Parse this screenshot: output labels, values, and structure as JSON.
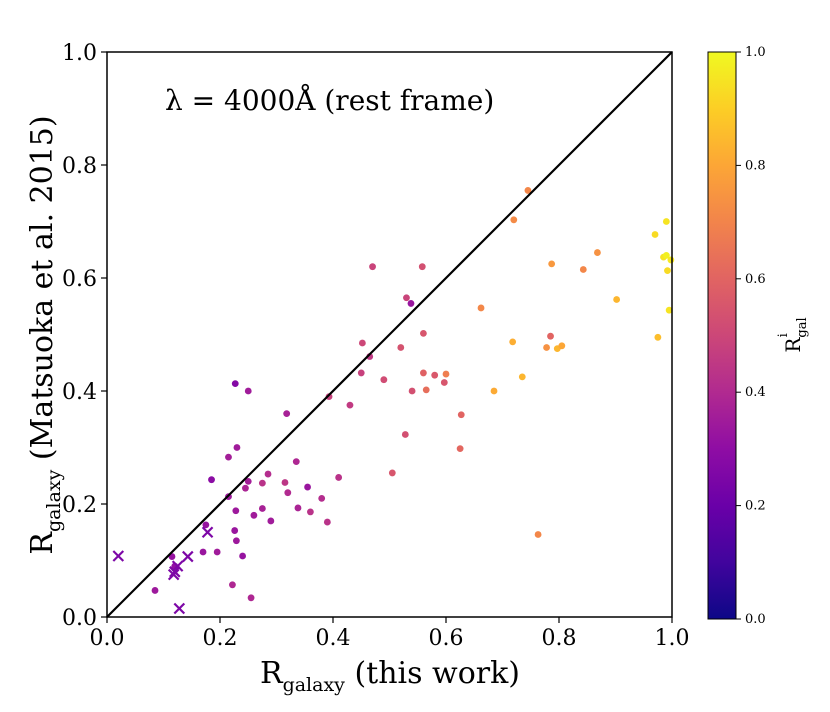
{
  "chart_data": {
    "type": "scatter",
    "annotation": "λ = 4000Å (rest frame)",
    "xlabel": {
      "main": "R",
      "sub": "galaxy",
      "rest": " (this work)"
    },
    "ylabel": {
      "main": "R",
      "sub": "galaxy",
      "rest": " (Matsuoka et al. 2015)"
    },
    "xlim": [
      0.0,
      1.0
    ],
    "ylim": [
      0.0,
      1.0
    ],
    "xticks": [
      "0.0",
      "0.2",
      "0.4",
      "0.6",
      "0.8",
      "1.0"
    ],
    "yticks": [
      "0.0",
      "0.2",
      "0.4",
      "0.6",
      "0.8",
      "1.0"
    ],
    "identity_line": true,
    "colorbar": {
      "label": {
        "main": "R",
        "sup": "i",
        "sub": "gal"
      },
      "range": [
        0.0,
        1.0
      ],
      "ticks": [
        "0.0",
        "0.2",
        "0.4",
        "0.6",
        "0.8",
        "1.0"
      ],
      "colormap": "plasma"
    },
    "series": [
      {
        "name": "circles",
        "marker": "o",
        "points": [
          [
            0.085,
            0.047,
            0.34
          ],
          [
            0.115,
            0.107,
            0.32
          ],
          [
            0.12,
            0.09,
            0.31
          ],
          [
            0.17,
            0.115,
            0.33
          ],
          [
            0.175,
            0.163,
            0.32
          ],
          [
            0.185,
            0.243,
            0.29
          ],
          [
            0.195,
            0.115,
            0.35
          ],
          [
            0.215,
            0.283,
            0.36
          ],
          [
            0.215,
            0.213,
            0.34
          ],
          [
            0.222,
            0.057,
            0.39
          ],
          [
            0.226,
            0.153,
            0.33
          ],
          [
            0.227,
            0.413,
            0.27
          ],
          [
            0.228,
            0.188,
            0.34
          ],
          [
            0.229,
            0.135,
            0.34
          ],
          [
            0.23,
            0.3,
            0.35
          ],
          [
            0.24,
            0.108,
            0.32
          ],
          [
            0.245,
            0.228,
            0.38
          ],
          [
            0.25,
            0.4,
            0.35
          ],
          [
            0.25,
            0.24,
            0.36
          ],
          [
            0.255,
            0.034,
            0.39
          ],
          [
            0.26,
            0.18,
            0.35
          ],
          [
            0.275,
            0.237,
            0.43
          ],
          [
            0.275,
            0.192,
            0.37
          ],
          [
            0.285,
            0.253,
            0.41
          ],
          [
            0.29,
            0.17,
            0.35
          ],
          [
            0.315,
            0.238,
            0.44
          ],
          [
            0.318,
            0.36,
            0.37
          ],
          [
            0.32,
            0.22,
            0.4
          ],
          [
            0.335,
            0.275,
            0.39
          ],
          [
            0.338,
            0.193,
            0.38
          ],
          [
            0.355,
            0.23,
            0.33
          ],
          [
            0.36,
            0.186,
            0.43
          ],
          [
            0.38,
            0.21,
            0.41
          ],
          [
            0.39,
            0.168,
            0.43
          ],
          [
            0.393,
            0.39,
            0.48
          ],
          [
            0.41,
            0.247,
            0.43
          ],
          [
            0.43,
            0.375,
            0.46
          ],
          [
            0.45,
            0.432,
            0.48
          ],
          [
            0.452,
            0.485,
            0.5
          ],
          [
            0.465,
            0.461,
            0.45
          ],
          [
            0.47,
            0.62,
            0.49
          ],
          [
            0.49,
            0.42,
            0.52
          ],
          [
            0.505,
            0.255,
            0.55
          ],
          [
            0.52,
            0.477,
            0.54
          ],
          [
            0.528,
            0.323,
            0.53
          ],
          [
            0.53,
            0.565,
            0.49
          ],
          [
            0.538,
            0.555,
            0.33
          ],
          [
            0.54,
            0.4,
            0.53
          ],
          [
            0.558,
            0.62,
            0.53
          ],
          [
            0.56,
            0.502,
            0.55
          ],
          [
            0.56,
            0.432,
            0.59
          ],
          [
            0.565,
            0.402,
            0.63
          ],
          [
            0.58,
            0.428,
            0.56
          ],
          [
            0.597,
            0.415,
            0.55
          ],
          [
            0.6,
            0.43,
            0.68
          ],
          [
            0.625,
            0.298,
            0.61
          ],
          [
            0.627,
            0.358,
            0.6
          ],
          [
            0.662,
            0.547,
            0.71
          ],
          [
            0.685,
            0.4,
            0.81
          ],
          [
            0.718,
            0.487,
            0.82
          ],
          [
            0.72,
            0.703,
            0.72
          ],
          [
            0.735,
            0.425,
            0.84
          ],
          [
            0.745,
            0.755,
            0.71
          ],
          [
            0.763,
            0.146,
            0.71
          ],
          [
            0.778,
            0.477,
            0.74
          ],
          [
            0.785,
            0.497,
            0.6
          ],
          [
            0.787,
            0.625,
            0.76
          ],
          [
            0.797,
            0.475,
            0.84
          ],
          [
            0.805,
            0.48,
            0.8
          ],
          [
            0.843,
            0.615,
            0.71
          ],
          [
            0.868,
            0.645,
            0.74
          ],
          [
            0.902,
            0.562,
            0.84
          ],
          [
            0.97,
            0.677,
            0.93
          ],
          [
            0.975,
            0.495,
            0.86
          ],
          [
            0.985,
            0.637,
            0.95
          ],
          [
            0.99,
            0.64,
            0.98
          ],
          [
            0.99,
            0.7,
            0.95
          ],
          [
            0.992,
            0.613,
            0.93
          ],
          [
            0.995,
            0.543,
            0.95
          ],
          [
            0.998,
            0.632,
            0.96
          ]
        ]
      },
      {
        "name": "crosses",
        "marker": "x",
        "points": [
          [
            0.02,
            0.108,
            0.25
          ],
          [
            0.12,
            0.08,
            0.25
          ],
          [
            0.125,
            0.09,
            0.25
          ],
          [
            0.128,
            0.015,
            0.25
          ],
          [
            0.143,
            0.107,
            0.25
          ],
          [
            0.178,
            0.15,
            0.25
          ],
          [
            0.118,
            0.075,
            0.25
          ]
        ]
      }
    ]
  }
}
